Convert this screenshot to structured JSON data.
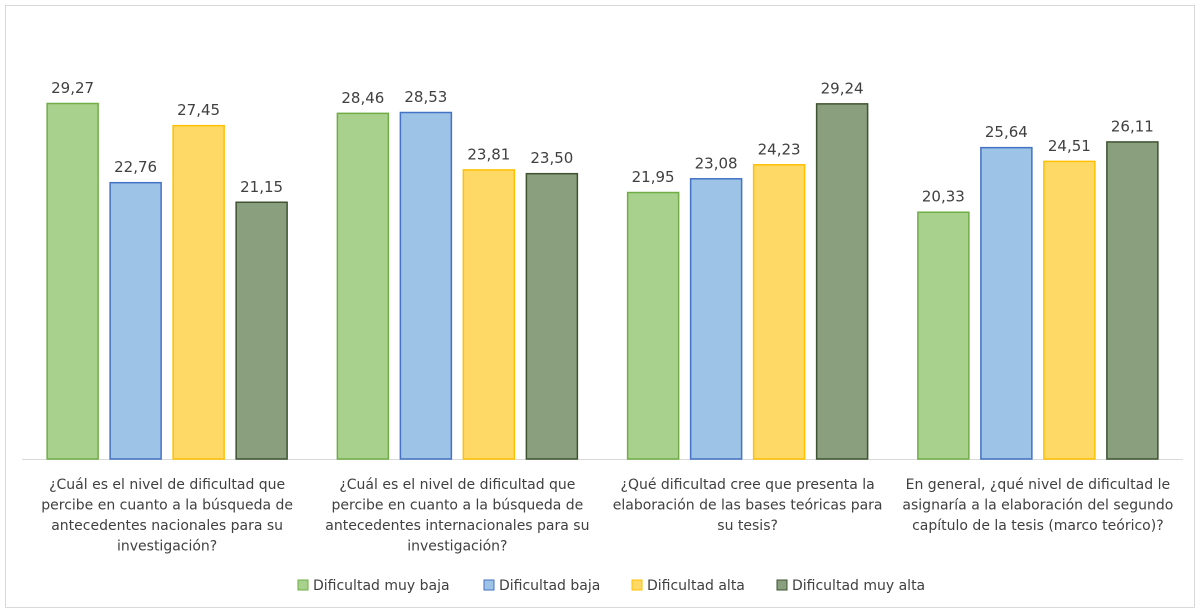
{
  "chart_data": {
    "type": "bar",
    "title": "",
    "xlabel": "",
    "ylabel": "",
    "ylim": [
      0,
      30
    ],
    "grid": false,
    "legend_position": "bottom",
    "categories": [
      [
        "¿Cuál es el nivel de dificultad que",
        "percibe en cuanto a la búsqueda de",
        "antecedentes nacionales para su",
        "investigación?"
      ],
      [
        "¿Cuál es el nivel de dificultad que",
        "percibe en cuanto a la búsqueda de",
        "antecedentes internacionales para su",
        "investigación?"
      ],
      [
        "¿Qué dificultad cree que presenta la",
        "elaboración de las bases teóricas para",
        "su tesis?"
      ],
      [
        "En general, ¿qué nivel de dificultad le",
        "asignaría a la elaboración del segundo",
        "capítulo de la tesis (marco teórico)?"
      ]
    ],
    "series": [
      {
        "name": "Dificultad muy baja",
        "values": [
          29.27,
          28.46,
          21.95,
          20.33
        ],
        "labels": [
          "29,27",
          "28,46",
          "21,95",
          "20,33"
        ],
        "fill": "#a9d18e",
        "stroke": "#70ad47"
      },
      {
        "name": "Dificultad baja",
        "values": [
          22.76,
          28.53,
          23.08,
          25.64
        ],
        "labels": [
          "22,76",
          "28,53",
          "23,08",
          "25,64"
        ],
        "fill": "#9dc3e6",
        "stroke": "#4472c4"
      },
      {
        "name": "Dificultad alta",
        "values": [
          27.45,
          23.81,
          24.23,
          24.51
        ],
        "labels": [
          "27,45",
          "23,81",
          "24,23",
          "24,51"
        ],
        "fill": "#ffd966",
        "stroke": "#ffc000"
      },
      {
        "name": "Dificultad muy alta",
        "values": [
          21.15,
          23.5,
          29.24,
          26.11
        ],
        "labels": [
          "21,15",
          "23,50",
          "29,24",
          "26,11"
        ],
        "fill": "#8a9f7e",
        "stroke": "#3e5330"
      }
    ]
  }
}
